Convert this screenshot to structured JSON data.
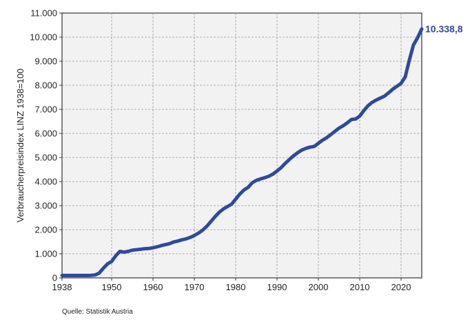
{
  "chart_data": {
    "type": "line",
    "title": "",
    "ylabel": "Verbraucherpreisindex  LINZ  1938=100",
    "xlabel": "",
    "xlim": [
      1938,
      2025
    ],
    "ylim": [
      0,
      11000
    ],
    "grid": true,
    "x_ticks": [
      1938,
      1950,
      1960,
      1970,
      1980,
      1990,
      2000,
      2010,
      2020
    ],
    "x_tick_labels": [
      "1938",
      "1950",
      "1960",
      "1970",
      "1980",
      "1990",
      "2000",
      "2010",
      "2020"
    ],
    "y_ticks": [
      0,
      1000,
      2000,
      3000,
      4000,
      5000,
      6000,
      7000,
      8000,
      9000,
      10000,
      11000
    ],
    "y_tick_labels": [
      "0",
      "1.000",
      "2.000",
      "3.000",
      "4.000",
      "5.000",
      "6.000",
      "7.000",
      "8.000",
      "9.000",
      "10.000",
      "11.000"
    ],
    "end_label": "10.338,8",
    "source": "Quelle: Statistik Austria",
    "colors": {
      "line": "#2e4a9a",
      "end_label": "#2e4a9a",
      "plot_bg": "#f2f2f2"
    },
    "series": [
      {
        "x": [
          1938,
          1940,
          1942,
          1944,
          1945,
          1946,
          1947,
          1948,
          1949,
          1950,
          1951,
          1952,
          1953,
          1954,
          1955,
          1956,
          1957,
          1958,
          1959,
          1960,
          1961,
          1962,
          1963,
          1964,
          1965,
          1966,
          1967,
          1968,
          1969,
          1970,
          1971,
          1972,
          1973,
          1974,
          1975,
          1976,
          1977,
          1978,
          1979,
          1980,
          1981,
          1982,
          1983,
          1984,
          1985,
          1986,
          1987,
          1988,
          1989,
          1990,
          1991,
          1992,
          1993,
          1994,
          1995,
          1996,
          1997,
          1998,
          1999,
          2000,
          2001,
          2002,
          2003,
          2004,
          2005,
          2006,
          2007,
          2008,
          2009,
          2010,
          2011,
          2012,
          2013,
          2014,
          2015,
          2016,
          2017,
          2018,
          2019,
          2020,
          2021,
          2022,
          2023,
          2024,
          2025
        ],
        "values": [
          100,
          100,
          100,
          100,
          105,
          120,
          200,
          400,
          580,
          680,
          920,
          1100,
          1070,
          1100,
          1150,
          1170,
          1190,
          1210,
          1220,
          1250,
          1290,
          1340,
          1380,
          1420,
          1490,
          1530,
          1580,
          1620,
          1680,
          1760,
          1860,
          1980,
          2140,
          2340,
          2540,
          2720,
          2860,
          2960,
          3060,
          3270,
          3480,
          3650,
          3760,
          3950,
          4050,
          4110,
          4160,
          4220,
          4310,
          4440,
          4580,
          4760,
          4920,
          5070,
          5200,
          5310,
          5380,
          5430,
          5460,
          5590,
          5720,
          5820,
          5950,
          6090,
          6220,
          6320,
          6440,
          6580,
          6600,
          6720,
          6950,
          7150,
          7290,
          7390,
          7470,
          7550,
          7690,
          7840,
          7960,
          8080,
          8350,
          9050,
          9680,
          9980,
          10339
        ]
      }
    ]
  }
}
